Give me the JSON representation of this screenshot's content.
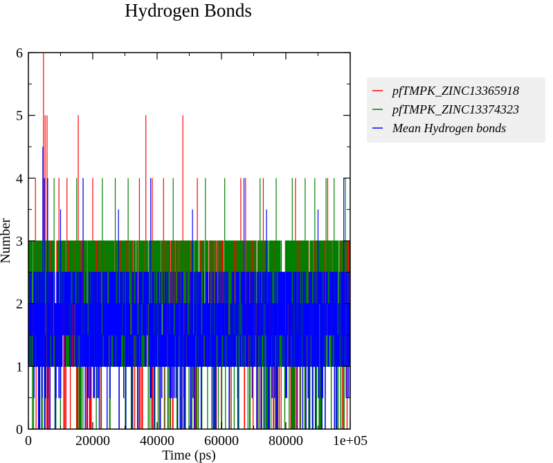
{
  "chart_data": {
    "type": "line",
    "title": "Hydrogen Bonds",
    "xlabel": "Time (ps)",
    "ylabel": "Number",
    "xlim": [
      0,
      100000
    ],
    "ylim": [
      0,
      6
    ],
    "x_ticks": [
      0,
      20000,
      40000,
      60000,
      80000,
      100000
    ],
    "x_tick_labels": [
      "0",
      "20000",
      "40000",
      "60000",
      "80000",
      "1e+05"
    ],
    "y_ticks": [
      0,
      1,
      2,
      3,
      4,
      5,
      6
    ],
    "y_tick_labels": [
      "0",
      "1",
      "2",
      "3",
      "4",
      "5",
      "6"
    ],
    "grid": false,
    "legend_position": "right",
    "series": [
      {
        "name": "pfTMPK_ZINC13365918",
        "color": "#ff0000",
        "typical_range": [
          1,
          3
        ],
        "peaks": [
          {
            "x": 4700,
            "y": 6
          },
          {
            "x": 5200,
            "y": 5
          },
          {
            "x": 5800,
            "y": 5
          },
          {
            "x": 15500,
            "y": 5
          },
          {
            "x": 36500,
            "y": 5
          },
          {
            "x": 48000,
            "y": 5
          },
          {
            "x": 2200,
            "y": 4
          },
          {
            "x": 9500,
            "y": 4
          },
          {
            "x": 12000,
            "y": 4
          },
          {
            "x": 17000,
            "y": 4
          },
          {
            "x": 20000,
            "y": 4
          },
          {
            "x": 34500,
            "y": 4
          },
          {
            "x": 38500,
            "y": 4
          },
          {
            "x": 42000,
            "y": 4
          },
          {
            "x": 52500,
            "y": 4
          },
          {
            "x": 66000,
            "y": 4
          },
          {
            "x": 67500,
            "y": 4
          },
          {
            "x": 73000,
            "y": 4
          },
          {
            "x": 83000,
            "y": 4
          },
          {
            "x": 93000,
            "y": 4
          }
        ]
      },
      {
        "name": "pfTMPK_ZINC13374323",
        "color": "#008000",
        "typical_range": [
          1,
          3
        ],
        "peaks": [
          {
            "x": 4500,
            "y": 4
          },
          {
            "x": 8000,
            "y": 4
          },
          {
            "x": 15000,
            "y": 4
          },
          {
            "x": 23000,
            "y": 4
          },
          {
            "x": 27000,
            "y": 4
          },
          {
            "x": 31000,
            "y": 4
          },
          {
            "x": 45000,
            "y": 4
          },
          {
            "x": 55000,
            "y": 4
          },
          {
            "x": 61000,
            "y": 4
          },
          {
            "x": 72000,
            "y": 4
          },
          {
            "x": 77000,
            "y": 4
          },
          {
            "x": 82000,
            "y": 4
          },
          {
            "x": 86000,
            "y": 4
          },
          {
            "x": 89000,
            "y": 4
          },
          {
            "x": 92500,
            "y": 4
          },
          {
            "x": 95000,
            "y": 4
          },
          {
            "x": 98500,
            "y": 4
          }
        ]
      },
      {
        "name": "Mean Hydrogen bonds",
        "color": "#0000ff",
        "typical_range": [
          1,
          2.5
        ],
        "peaks": [
          {
            "x": 4500,
            "y": 4.5
          },
          {
            "x": 5000,
            "y": 4
          },
          {
            "x": 6000,
            "y": 4
          },
          {
            "x": 10000,
            "y": 3.5
          },
          {
            "x": 17000,
            "y": 4
          },
          {
            "x": 28000,
            "y": 3.5
          },
          {
            "x": 38000,
            "y": 4
          },
          {
            "x": 51000,
            "y": 3.5
          },
          {
            "x": 67000,
            "y": 4
          },
          {
            "x": 74000,
            "y": 3.5
          },
          {
            "x": 90000,
            "y": 3.5
          },
          {
            "x": 98000,
            "y": 4
          }
        ]
      }
    ]
  }
}
